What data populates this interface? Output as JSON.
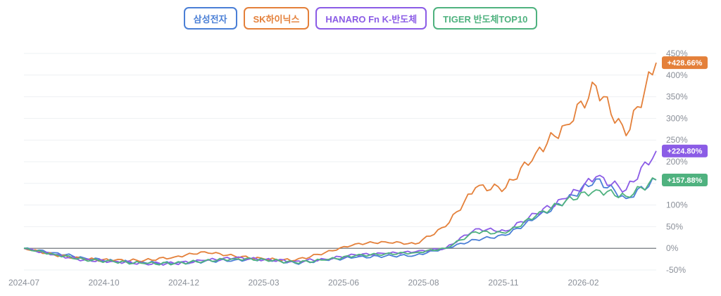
{
  "legend": {
    "items": [
      {
        "label": "삼성전자",
        "color": "#4a7fd6"
      },
      {
        "label": "SK하이닉스",
        "color": "#e4803a"
      },
      {
        "label": "HANARO Fn K-반도체",
        "color": "#8b5ce6"
      },
      {
        "label": "TIGER 반도체TOP10",
        "color": "#4fb27f"
      }
    ]
  },
  "chart_data": {
    "type": "line",
    "title": "",
    "xlabel": "",
    "ylabel": "",
    "y_unit": "%",
    "ylim": [
      -50,
      450
    ],
    "y_ticks": [
      "450%",
      "400%",
      "350%",
      "300%",
      "250%",
      "200%",
      "150%",
      "100%",
      "50%",
      "0%",
      "-50%"
    ],
    "x_ticks": [
      "2024-07",
      "2024-10",
      "2024-12",
      "2025-03",
      "2025-06",
      "2025-08",
      "2025-11",
      "2026-02"
    ],
    "grid": true,
    "legend_position": "top",
    "x": [
      "2024-07",
      "2024-08",
      "2024-09",
      "2024-10",
      "2024-11",
      "2024-12",
      "2025-01",
      "2025-02",
      "2025-03",
      "2025-04",
      "2025-05",
      "2025-06",
      "2025-07",
      "2025-08",
      "2025-09",
      "2025-10",
      "2025-11",
      "2025-12",
      "2026-01",
      "2026-02",
      "2026-03",
      "2026-04"
    ],
    "series": [
      {
        "name": "삼성전자",
        "color": "#4a7fd6",
        "end_label": "",
        "values": [
          0,
          -10,
          -22,
          -30,
          -33,
          -35,
          -30,
          -27,
          -25,
          -34,
          -27,
          -21,
          -18,
          -16,
          0,
          20,
          30,
          70,
          110,
          160,
          115,
          158
        ]
      },
      {
        "name": "SK하이닉스",
        "color": "#e4803a",
        "end_label": "+428.66%",
        "values": [
          0,
          -15,
          -25,
          -28,
          -28,
          -20,
          -8,
          -18,
          -25,
          -28,
          -10,
          10,
          15,
          10,
          50,
          140,
          140,
          220,
          285,
          375,
          260,
          428.66
        ]
      },
      {
        "name": "HANARO Fn K-반도체",
        "color": "#8b5ce6",
        "end_label": "+224.80%",
        "values": [
          0,
          -15,
          -27,
          -30,
          -35,
          -35,
          -28,
          -22,
          -26,
          -30,
          -25,
          -15,
          -12,
          -8,
          0,
          45,
          40,
          80,
          115,
          165,
          135,
          224.8
        ]
      },
      {
        "name": "TIGER 반도체TOP10",
        "color": "#4fb27f",
        "end_label": "+157.88%",
        "values": [
          0,
          -14,
          -26,
          -31,
          -35,
          -35,
          -29,
          -24,
          -26,
          -33,
          -27,
          -17,
          -13,
          -10,
          0,
          38,
          35,
          75,
          110,
          135,
          120,
          157.88
        ]
      }
    ]
  }
}
